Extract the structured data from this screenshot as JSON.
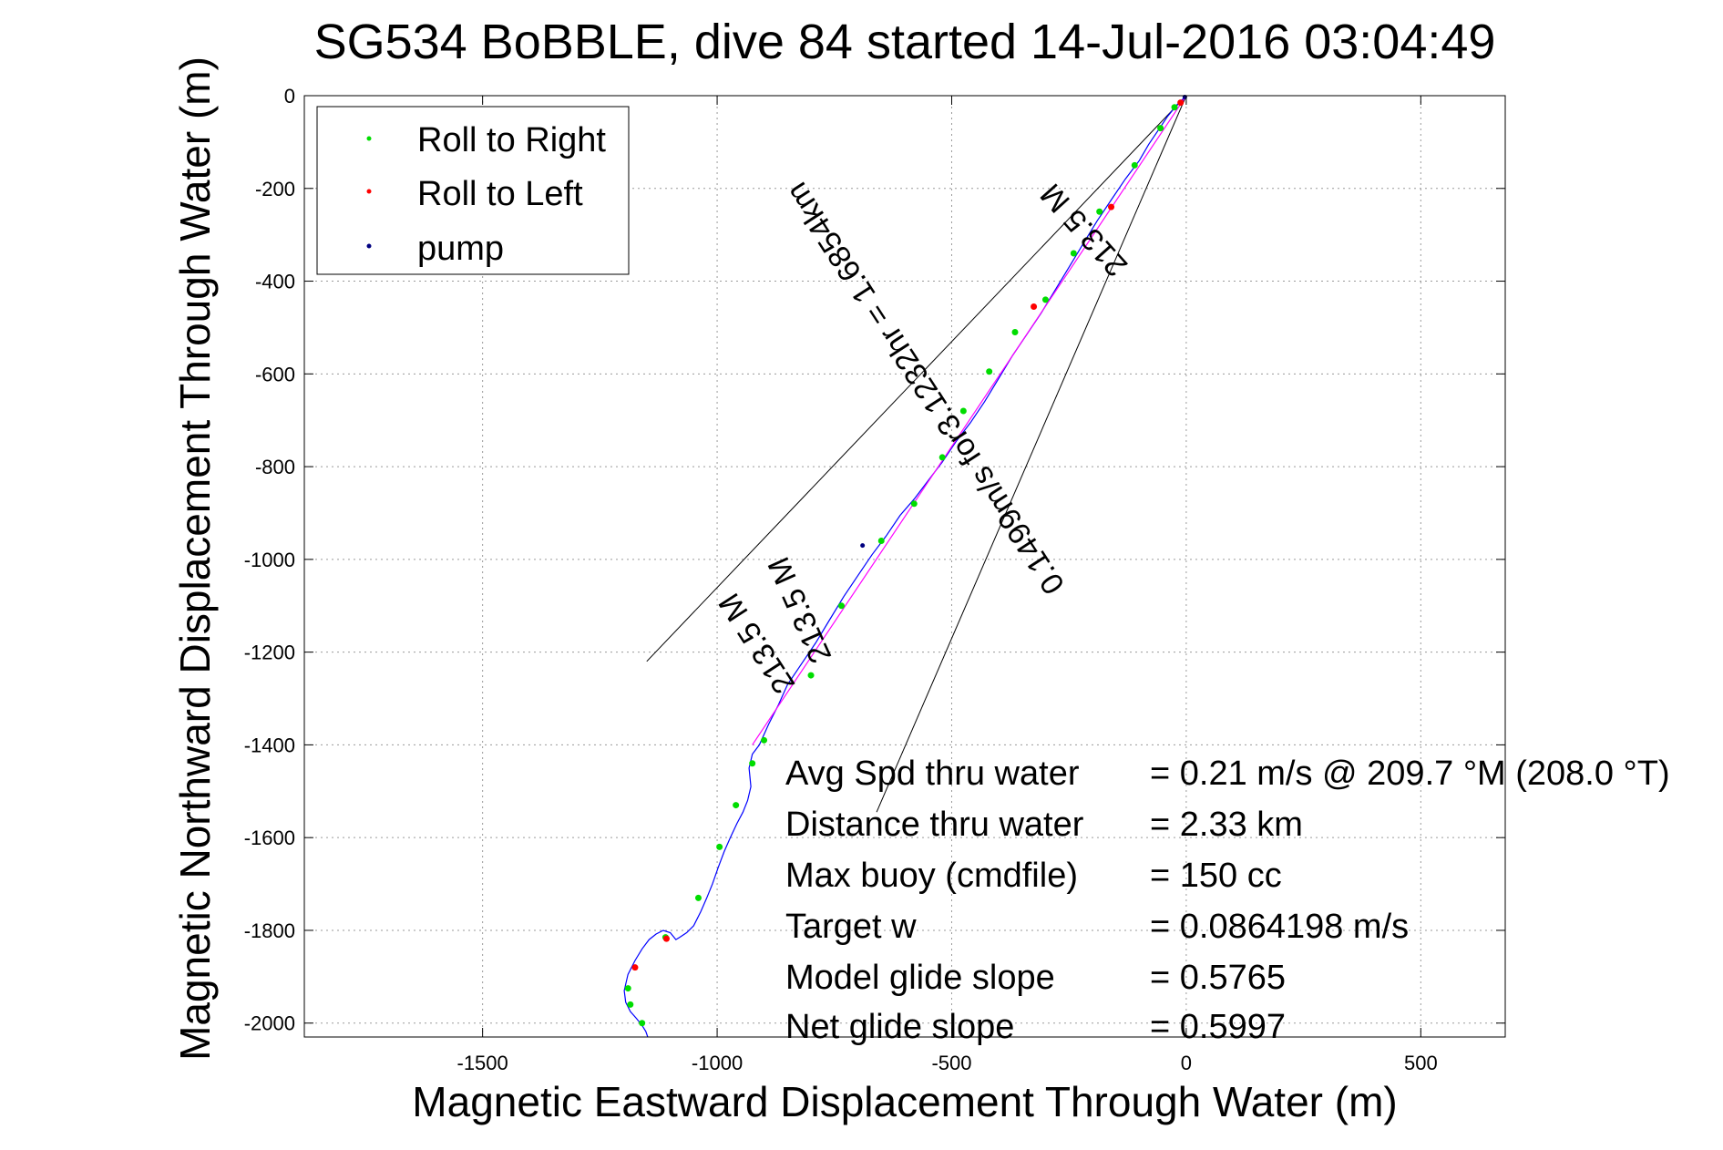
{
  "chart_data": {
    "type": "line",
    "title": "SG534 BoBBLE, dive 84 started 14-Jul-2016 03:04:49",
    "xlabel": "Magnetic Eastward Displacement Through Water (m)",
    "ylabel": "Magnetic Northward Displacement Through Water (m)",
    "xlim": [
      -1880,
      680
    ],
    "ylim": [
      -2030,
      0
    ],
    "x_ticks": [
      -1500,
      -1000,
      -500,
      0,
      500
    ],
    "y_ticks": [
      0,
      -200,
      -400,
      -600,
      -800,
      -1000,
      -1200,
      -1400,
      -1600,
      -1800,
      -2000
    ],
    "grid": true,
    "legend_position": "top-left",
    "legend": [
      {
        "label": "Roll to Right",
        "color": "#00dd00"
      },
      {
        "label": "Roll to Left",
        "color": "#ff0000"
      },
      {
        "label": "pump",
        "color": "#000080"
      }
    ],
    "series": [
      {
        "role": "track",
        "color": "#0000ff",
        "x": [
          0,
          -20,
          -40,
          -60,
          -80,
          -100,
          -130,
          -160,
          -190,
          -220,
          -250,
          -280,
          -310,
          -340,
          -370,
          -400,
          -430,
          -460,
          -490,
          -520,
          -550,
          -580,
          -610,
          -640,
          -670,
          -700,
          -730,
          -760,
          -790,
          -820,
          -850,
          -870,
          -890,
          -910,
          -925,
          -932,
          -928,
          -935,
          -945,
          -958,
          -972,
          -985,
          -998,
          -1010,
          -1022,
          -1035,
          -1050,
          -1065,
          -1080,
          -1088,
          -1100,
          -1115,
          -1130,
          -1145,
          -1160,
          -1175,
          -1190,
          -1198,
          -1195,
          -1185,
          -1172,
          -1160,
          -1152,
          -1148
        ],
        "y": [
          0,
          -20,
          -45,
          -75,
          -105,
          -140,
          -180,
          -225,
          -270,
          -320,
          -370,
          -420,
          -470,
          -515,
          -560,
          -610,
          -660,
          -705,
          -745,
          -790,
          -830,
          -870,
          -905,
          -950,
          -990,
          -1035,
          -1080,
          -1130,
          -1180,
          -1225,
          -1270,
          -1315,
          -1355,
          -1400,
          -1420,
          -1450,
          -1490,
          -1520,
          -1545,
          -1570,
          -1600,
          -1630,
          -1665,
          -1700,
          -1730,
          -1760,
          -1790,
          -1805,
          -1815,
          -1820,
          -1805,
          -1800,
          -1808,
          -1820,
          -1840,
          -1865,
          -1895,
          -1930,
          -1955,
          -1975,
          -1990,
          -2005,
          -2018,
          -2030
        ]
      },
      {
        "role": "roll-to-right",
        "color": "#00dd00",
        "x": [
          -25,
          -55,
          -110,
          -185,
          -240,
          -300,
          -365,
          -420,
          -475,
          -520,
          -580,
          -650,
          -735,
          -800,
          -900,
          -925,
          -960,
          -995,
          -1040,
          -1110,
          -1190,
          -1185,
          -1160
        ],
        "y": [
          -25,
          -70,
          -150,
          -250,
          -340,
          -440,
          -510,
          -595,
          -680,
          -780,
          -880,
          -960,
          -1100,
          -1250,
          -1390,
          -1440,
          -1530,
          -1620,
          -1730,
          -1815,
          -1925,
          -1960,
          -2000
        ]
      },
      {
        "role": "roll-to-left",
        "color": "#ff0000",
        "x": [
          -12,
          -160,
          -325,
          -1108,
          -1175
        ],
        "y": [
          -15,
          -240,
          -455,
          -1818,
          -1880
        ]
      },
      {
        "role": "pump",
        "color": "#000080",
        "x": [
          -3,
          -690
        ],
        "y": [
          -3,
          -970
        ]
      },
      {
        "role": "net-displacement",
        "color": "#ff00ff",
        "x": [
          0,
          -925
        ],
        "y": [
          0,
          -1400
        ]
      },
      {
        "role": "wedge-left",
        "color": "#000000",
        "x": [
          0,
          -1150
        ],
        "y": [
          0,
          -1220
        ]
      },
      {
        "role": "wedge-right",
        "color": "#000000",
        "x": [
          0,
          -660
        ],
        "y": [
          0,
          -1545
        ]
      }
    ],
    "annotations": {
      "slanted_1": "0.1499m/s for3.1232hr = 1.6854km",
      "slanted_2": "213.5 M",
      "slanted_3": "213.5 M",
      "slanted_4": "213.5 M"
    },
    "stats": [
      {
        "label": "Avg Spd thru water",
        "value": "=  0.21 m/s @ 209.7 °M (208.0 °T)"
      },
      {
        "label": "Distance thru water",
        "value": "=  2.33 km"
      },
      {
        "label": "Max buoy (cmdfile)",
        "value": "= 150 cc"
      },
      {
        "label": "Target w",
        "value": "= 0.0864198 m/s"
      },
      {
        "label": "Model glide slope",
        "value": "= 0.5765"
      },
      {
        "label": "Net glide slope",
        "value": "= 0.5997"
      }
    ]
  }
}
